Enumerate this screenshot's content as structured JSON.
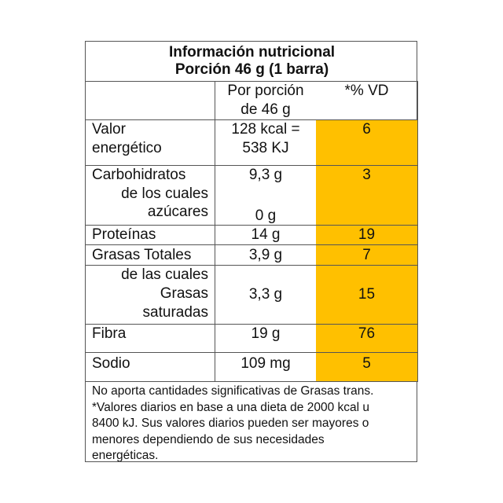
{
  "title": {
    "line1": "Información nutricional",
    "line2": "Porción 46 g (1 barra)"
  },
  "header": {
    "per_portion_line1": "Por porción",
    "per_portion_line2": "de 46 g",
    "dv": "*% VD"
  },
  "rows": [
    {
      "label_lines": [
        "Valor",
        "energético"
      ],
      "value_lines": [
        "128 kcal =",
        "538 KJ"
      ],
      "dv": "6"
    },
    {
      "label": "Carbohidratos",
      "sub_label_lines": [
        "de los cuales",
        "azúcares"
      ],
      "value": "9,3 g",
      "sub_value": "0 g",
      "dv": "3"
    },
    {
      "label": "Proteínas",
      "value": "14 g",
      "dv": "19"
    },
    {
      "label": "Grasas Totales",
      "value": "3,9 g",
      "dv": "7"
    },
    {
      "label_lines": [
        "de las cuales",
        "Grasas",
        "saturadas"
      ],
      "value": "3,3 g",
      "dv": "15"
    },
    {
      "label": "Fibra",
      "value": "19 g",
      "dv": "76"
    },
    {
      "label": "Sodio",
      "value": "109 mg",
      "dv": "5"
    }
  ],
  "footer": {
    "line1": "No aporta cantidades significativas de Grasas trans.",
    "line2": "*Valores diarios en base a una dieta de 2000 kcal u",
    "line3": "8400 kJ. Sus valores diarios pueden ser mayores o",
    "line4": "menores dependiendo de sus necesidades",
    "line5": "energéticas."
  },
  "colors": {
    "dv_highlight": "#FFC000",
    "border": "#555555"
  }
}
